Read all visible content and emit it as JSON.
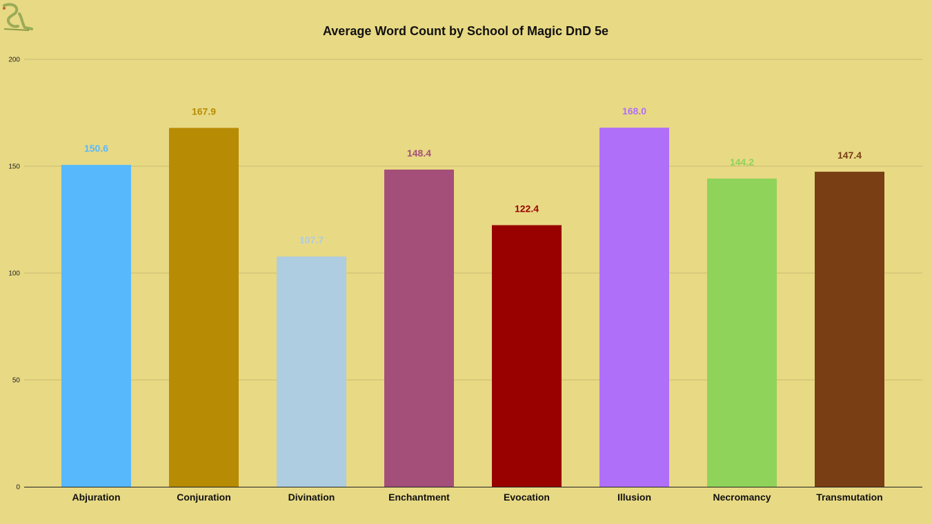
{
  "chart_data": {
    "type": "bar",
    "title": "Average Word Count by School of Magic DnD 5e",
    "xlabel": "",
    "ylabel": "",
    "ylim": [
      0,
      200
    ],
    "yticks": [
      0,
      50,
      100,
      150,
      200
    ],
    "grid": true,
    "legend": "none",
    "categories": [
      "Abjuration",
      "Conjuration",
      "Divination",
      "Enchantment",
      "Evocation",
      "Illusion",
      "Necromancy",
      "Transmutation"
    ],
    "values": [
      150.6,
      167.9,
      107.7,
      148.4,
      122.4,
      168.0,
      144.2,
      147.4
    ],
    "data_labels": [
      "150.6",
      "167.9",
      "107.7",
      "148.4",
      "122.4",
      "168.0",
      "144.2",
      "147.4"
    ],
    "colors": [
      "#57b9fc",
      "#b78c04",
      "#aecde0",
      "#a44f79",
      "#990000",
      "#b06ff8",
      "#8fd35a",
      "#7a3e14"
    ]
  },
  "logo": {
    "icon": "dragon-logo-icon",
    "color": "#9aab57"
  }
}
